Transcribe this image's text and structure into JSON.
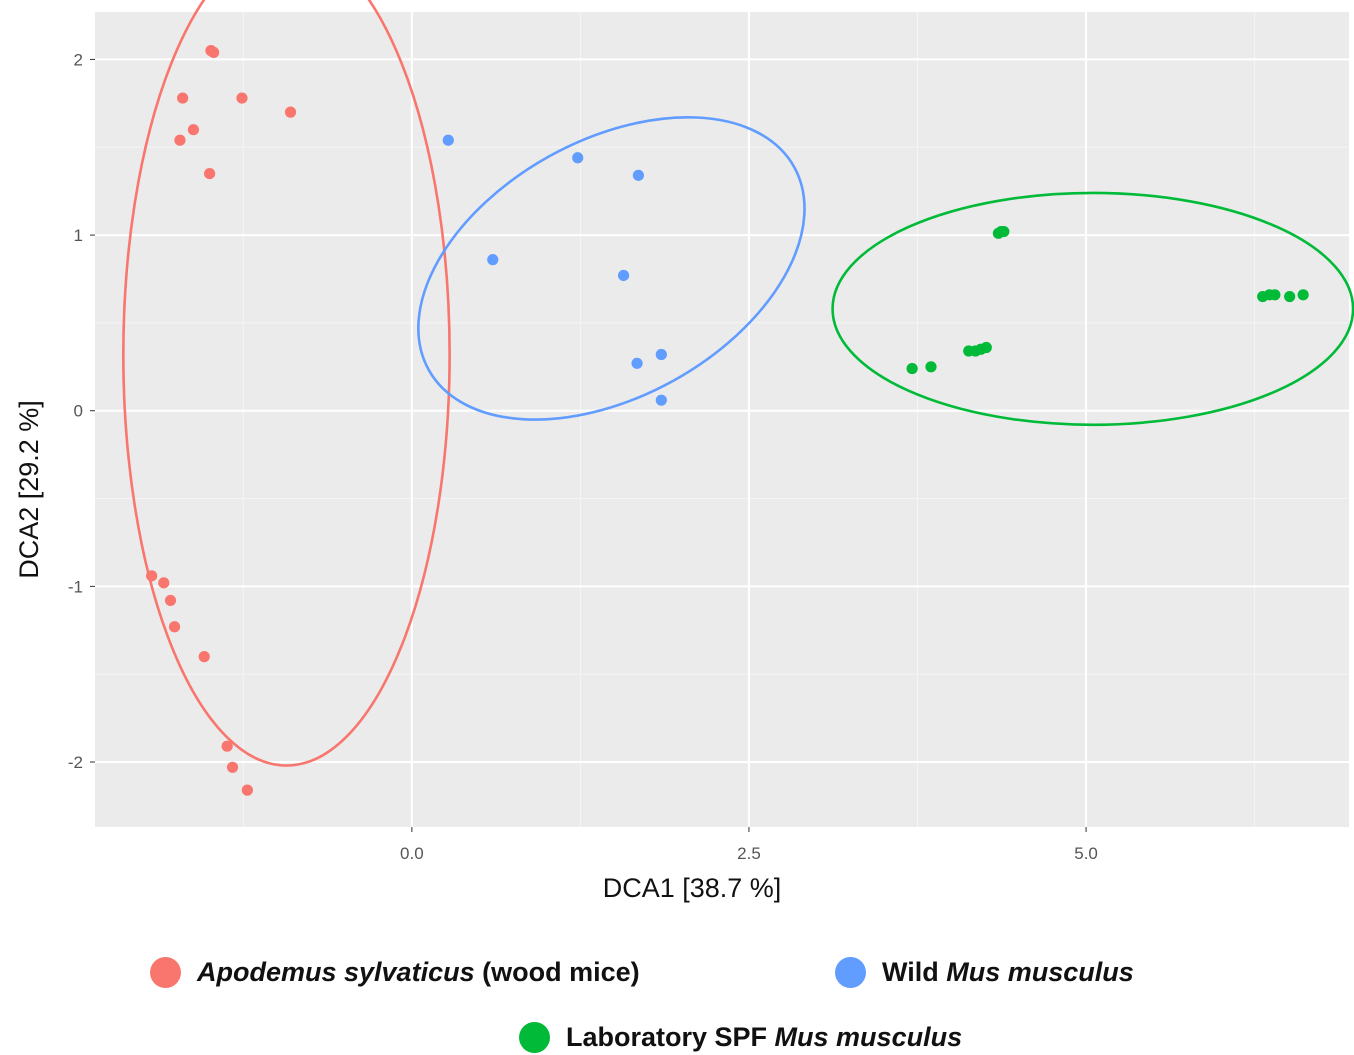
{
  "chart_data": {
    "type": "scatter",
    "xlabel": "DCA1 [38.7 %]",
    "ylabel": "DCA2 [29.2 %]",
    "xlim": [
      -2.35,
      6.95
    ],
    "ylim": [
      -2.37,
      2.27
    ],
    "x_ticks": [
      0.0,
      2.5,
      5.0
    ],
    "x_tick_labels": [
      "0.0",
      "2.5",
      "5.0"
    ],
    "y_ticks": [
      -2,
      -1,
      0,
      1,
      2
    ],
    "y_tick_labels": [
      "-2",
      "-1",
      "0",
      "1",
      "2"
    ],
    "grid": true,
    "legend_position": "bottom",
    "series": [
      {
        "name_parts": [
          {
            "text": "Apodemus sylvaticus",
            "italic": true
          },
          {
            "text": " (wood mice)",
            "italic": false
          }
        ],
        "color": "#F8766D",
        "points": [
          [
            -1.49,
            2.05
          ],
          [
            -1.47,
            2.04
          ],
          [
            -1.26,
            1.78
          ],
          [
            -1.7,
            1.78
          ],
          [
            -0.9,
            1.7
          ],
          [
            -1.62,
            1.6
          ],
          [
            -1.72,
            1.54
          ],
          [
            -1.5,
            1.35
          ],
          [
            -1.93,
            -0.94
          ],
          [
            -1.84,
            -0.98
          ],
          [
            -1.79,
            -1.08
          ],
          [
            -1.76,
            -1.23
          ],
          [
            -1.54,
            -1.4
          ],
          [
            -1.37,
            -1.91
          ],
          [
            -1.33,
            -2.03
          ],
          [
            -1.22,
            -2.16
          ]
        ],
        "ellipse": {
          "cx": -0.93,
          "cy": 0.32,
          "rx": 1.21,
          "ry": 2.34,
          "angle_deg": 0
        }
      },
      {
        "name_parts": [
          {
            "text": "Wild ",
            "italic": false
          },
          {
            "text": "Mus musculus",
            "italic": true
          }
        ],
        "color": "#619CFF",
        "points": [
          [
            0.27,
            1.54
          ],
          [
            1.23,
            1.44
          ],
          [
            1.68,
            1.34
          ],
          [
            0.6,
            0.86
          ],
          [
            1.57,
            0.77
          ],
          [
            1.85,
            0.32
          ],
          [
            1.67,
            0.27
          ],
          [
            1.85,
            0.06
          ]
        ],
        "ellipse": {
          "cx": 1.48,
          "cy": 0.81,
          "rx": 1.55,
          "ry": 0.73,
          "angle_deg": 29
        }
      },
      {
        "name_parts": [
          {
            "text": "Laboratory SPF ",
            "italic": false
          },
          {
            "text": "Mus musculus",
            "italic": true
          }
        ],
        "color": "#00BA38",
        "points": [
          [
            4.35,
            1.01
          ],
          [
            4.37,
            1.02
          ],
          [
            4.39,
            1.02
          ],
          [
            6.31,
            0.65
          ],
          [
            6.36,
            0.66
          ],
          [
            6.4,
            0.66
          ],
          [
            6.51,
            0.65
          ],
          [
            6.61,
            0.66
          ],
          [
            4.13,
            0.34
          ],
          [
            4.18,
            0.34
          ],
          [
            4.22,
            0.35
          ],
          [
            4.26,
            0.36
          ],
          [
            3.71,
            0.24
          ],
          [
            3.85,
            0.25
          ]
        ],
        "ellipse": {
          "cx": 5.05,
          "cy": 0.58,
          "rx": 1.93,
          "ry": 0.66,
          "angle_deg": 0
        }
      }
    ]
  }
}
